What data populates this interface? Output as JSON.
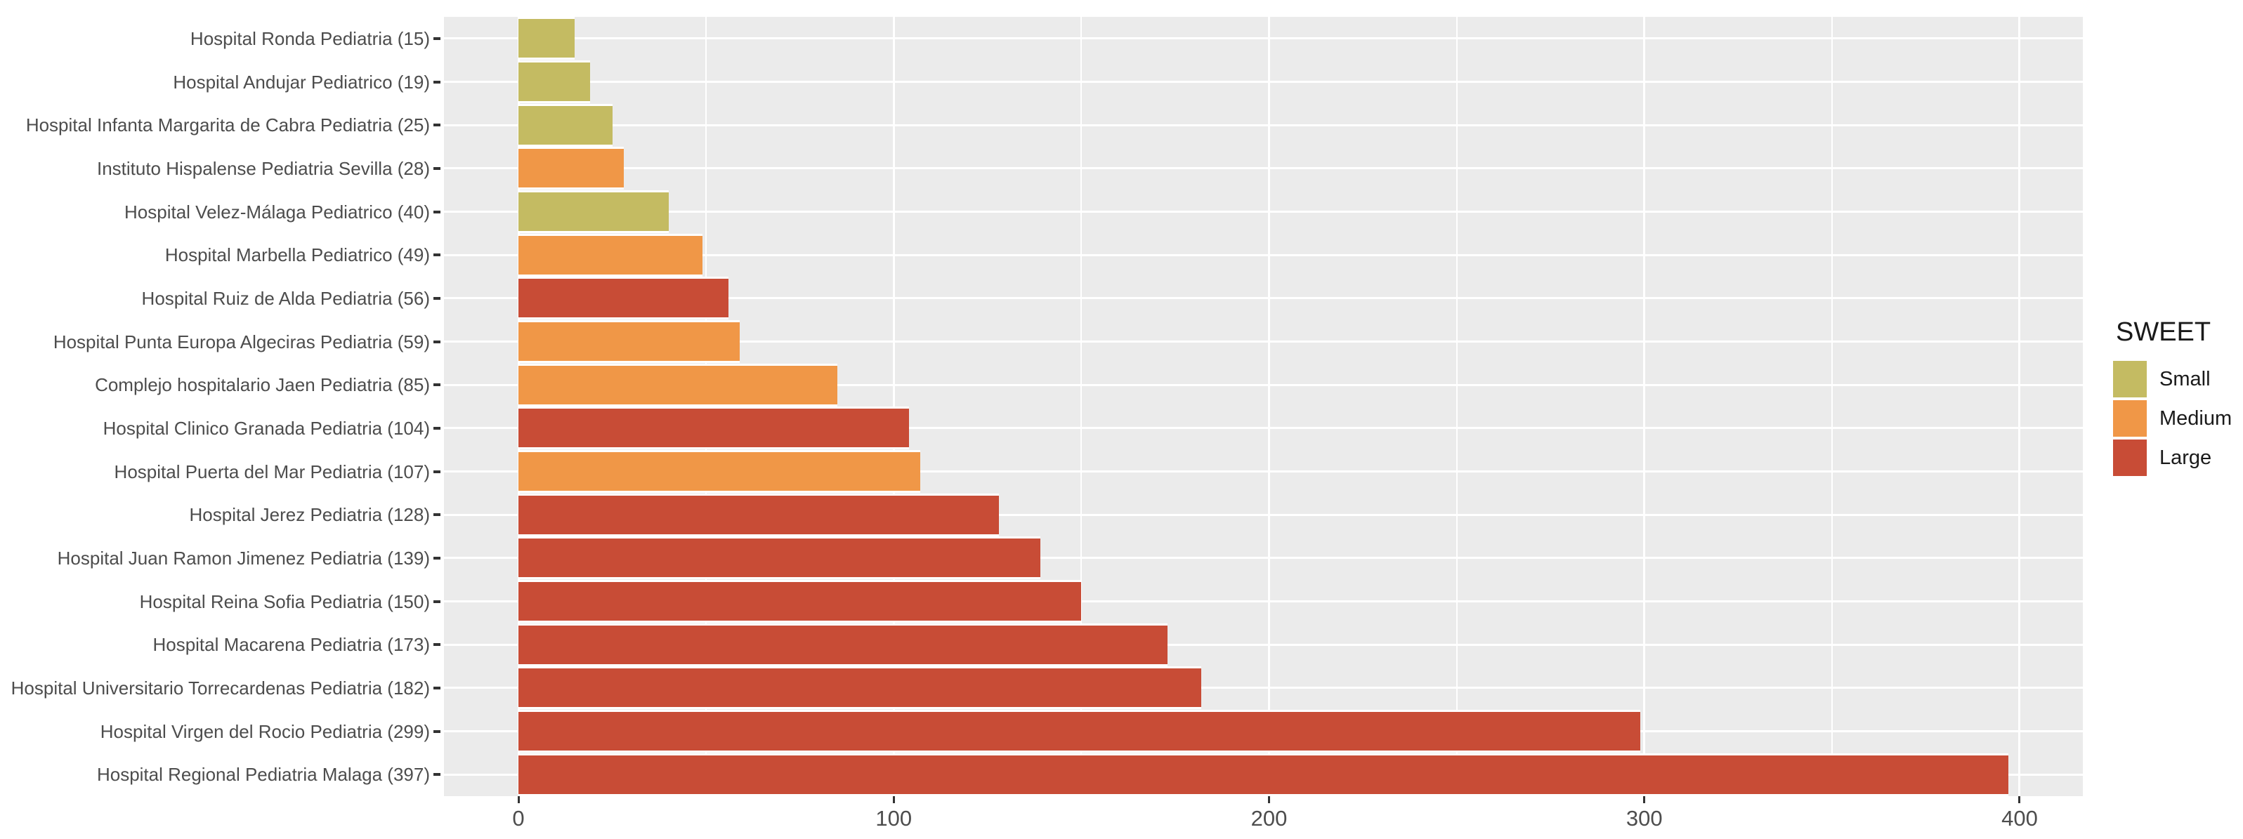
{
  "chart_data": {
    "type": "bar",
    "orientation": "horizontal",
    "title": "",
    "xlabel": "",
    "ylabel": "",
    "xlim": [
      -19.85,
      416.85
    ],
    "x_major_ticks": [
      0,
      100,
      200,
      300,
      400
    ],
    "x_minor_ticks": [
      50,
      150,
      250,
      350
    ],
    "grid": true,
    "panel_background": "#ebebeb",
    "grid_color": "#ffffff",
    "axis_text_color": "#4d4d4d",
    "tick_mark_color": "#333333",
    "bars": [
      {
        "label": "Hospital Ronda Pediatria (15)",
        "value": 15,
        "size": "Small"
      },
      {
        "label": "Hospital Andujar Pediatrico (19)",
        "value": 19,
        "size": "Small"
      },
      {
        "label": "Hospital Infanta Margarita de Cabra Pediatria (25)",
        "value": 25,
        "size": "Small"
      },
      {
        "label": "Instituto Hispalense Pediatria Sevilla (28)",
        "value": 28,
        "size": "Medium"
      },
      {
        "label": "Hospital Velez-Málaga Pediatrico (40)",
        "value": 40,
        "size": "Small"
      },
      {
        "label": "Hospital Marbella Pediatrico (49)",
        "value": 49,
        "size": "Medium"
      },
      {
        "label": "Hospital Ruiz de Alda Pediatria (56)",
        "value": 56,
        "size": "Large"
      },
      {
        "label": "Hospital Punta Europa Algeciras Pediatria (59)",
        "value": 59,
        "size": "Medium"
      },
      {
        "label": "Complejo hospitalario Jaen Pediatria (85)",
        "value": 85,
        "size": "Medium"
      },
      {
        "label": "Hospital Clinico Granada Pediatria (104)",
        "value": 104,
        "size": "Large"
      },
      {
        "label": "Hospital Puerta del Mar Pediatria (107)",
        "value": 107,
        "size": "Medium"
      },
      {
        "label": "Hospital Jerez Pediatria (128)",
        "value": 128,
        "size": "Large"
      },
      {
        "label": "Hospital Juan Ramon Jimenez Pediatria (139)",
        "value": 139,
        "size": "Large"
      },
      {
        "label": "Hospital Reina Sofia Pediatria (150)",
        "value": 150,
        "size": "Large"
      },
      {
        "label": "Hospital Macarena Pediatria (173)",
        "value": 173,
        "size": "Large"
      },
      {
        "label": "Hospital Universitario Torrecardenas Pediatria (182)",
        "value": 182,
        "size": "Large"
      },
      {
        "label": "Hospital Virgen del Rocio Pediatria (299)",
        "value": 299,
        "size": "Large"
      },
      {
        "label": "Hospital Regional Pediatria Malaga (397)",
        "value": 397,
        "size": "Large"
      }
    ],
    "colors": {
      "Small": "#c4bb62",
      "Medium": "#f09747",
      "Large": "#c84c36"
    },
    "legend": {
      "title": "SWEET",
      "position": "right",
      "entries": [
        {
          "label": "Small",
          "color": "#c4bb62"
        },
        {
          "label": "Medium",
          "color": "#f09747"
        },
        {
          "label": "Large",
          "color": "#c84c36"
        }
      ]
    }
  }
}
